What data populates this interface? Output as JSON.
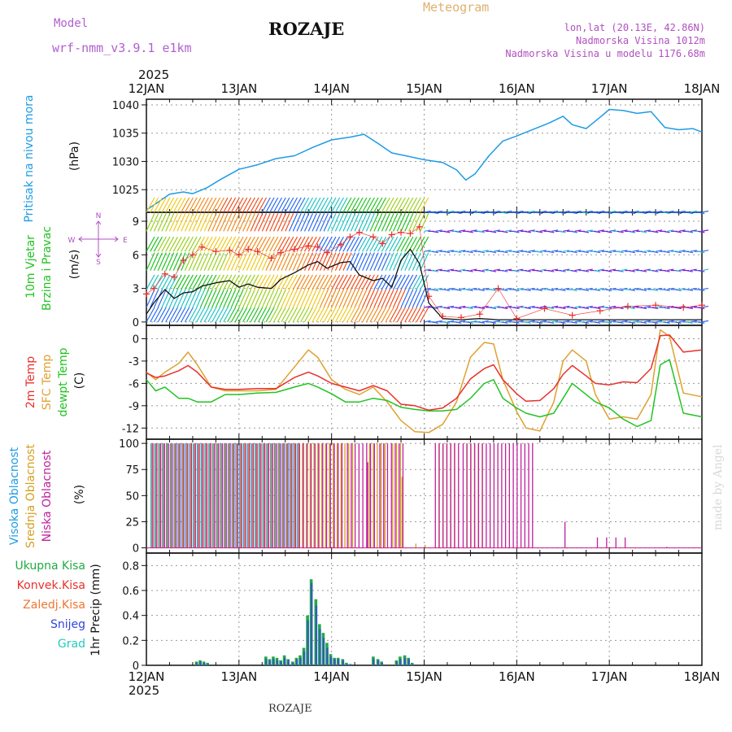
{
  "header": {
    "model_label": "Model",
    "model_name": "wrf-nmm_v3.9.1  e1km",
    "station": "ROZAJE",
    "chart_title": "Meteogram",
    "coords": "lon,lat (20.13E, 42.86N)",
    "elevation": "Nadmorska Visina 1012m",
    "model_elevation": "Nadmorska Visina u modelu 1176.68m",
    "watermark": "made by Angel",
    "footer_station": "ROZAJE"
  },
  "time_axis": {
    "year": "2025",
    "labels": [
      "12JAN",
      "13JAN",
      "14JAN",
      "15JAN",
      "16JAN",
      "17JAN",
      "18JAN"
    ]
  },
  "colors": {
    "pressure": "#1e9be6",
    "temp2m": "#e8302b",
    "sfc_temp": "#e0a030",
    "dewpt": "#22c322",
    "wind_speed": "#111111",
    "gust": "#e8302b",
    "high_cloud": "#1e9be6",
    "mid_cloud": "#d4a020",
    "low_cloud": "#c0209a",
    "precip_total": "#22aa44",
    "snow": "#3344dd",
    "grad": "#22ccbb"
  },
  "chart_data": [
    {
      "type": "line",
      "id": "pressure",
      "ylabel": [
        "Pritisak na nivou mora",
        "(hPa)"
      ],
      "ylim": [
        1021,
        1041
      ],
      "yticks": [
        "1025",
        "1030",
        "1035",
        "1040"
      ],
      "x_days": [
        0,
        0.1,
        0.25,
        0.4,
        0.5,
        0.65,
        0.8,
        1.0,
        1.2,
        1.4,
        1.6,
        1.8,
        2.0,
        2.2,
        2.35,
        2.5,
        2.65,
        2.8,
        3.0,
        3.2,
        3.35,
        3.45,
        3.55,
        3.7,
        3.85,
        4.0,
        4.2,
        4.35,
        4.5,
        4.6,
        4.75,
        4.9,
        5.0,
        5.15,
        5.3,
        5.45,
        5.6,
        5.75,
        5.9,
        6.0
      ],
      "series": [
        {
          "values": [
            1021.4,
            1022.5,
            1024.2,
            1024.6,
            1024.3,
            1025.3,
            1026.8,
            1028.6,
            1029.4,
            1030.5,
            1031.0,
            1032.5,
            1033.8,
            1034.3,
            1034.8,
            1033.2,
            1031.5,
            1031.0,
            1030.3,
            1029.8,
            1028.5,
            1026.7,
            1027.8,
            1031.0,
            1033.6,
            1034.5,
            1035.8,
            1036.8,
            1038.0,
            1036.5,
            1035.8,
            1037.8,
            1039.2,
            1039.0,
            1038.5,
            1038.8,
            1036.0,
            1035.6,
            1035.8,
            1035.2
          ]
        }
      ]
    },
    {
      "type": "line",
      "id": "wind",
      "ylabel": [
        "10m Vjetar",
        "Brzina i Pravac",
        "(m/s)"
      ],
      "ylim": [
        -0.3,
        9.8
      ],
      "yticks": [
        "0",
        "3",
        "6",
        "9"
      ],
      "compass": [
        "N",
        "W",
        "E",
        "S"
      ],
      "x_days": [
        0,
        0.08,
        0.2,
        0.3,
        0.4,
        0.5,
        0.6,
        0.75,
        0.9,
        1.0,
        1.1,
        1.2,
        1.35,
        1.45,
        1.6,
        1.75,
        1.85,
        1.95,
        2.1,
        2.2,
        2.3,
        2.45,
        2.55,
        2.65,
        2.75,
        2.85,
        2.95,
        3.05,
        3.2,
        3.4,
        3.6,
        3.8,
        4.0,
        4.3,
        4.6,
        4.9,
        5.2,
        5.5,
        5.8,
        6.0
      ],
      "series": [
        {
          "values": [
            0.7,
            1.7,
            2.9,
            2.1,
            2.6,
            2.7,
            3.2,
            3.5,
            3.7,
            3.1,
            3.4,
            3.1,
            3.0,
            3.8,
            4.4,
            5.1,
            5.4,
            4.8,
            5.3,
            5.4,
            4.2,
            3.7,
            3.9,
            3.1,
            5.5,
            6.5,
            5.2,
            1.7,
            0.3,
            0.2,
            0.3,
            0.2,
            0.2,
            0.2,
            0.2,
            0.2,
            0.2,
            0.2,
            0.2,
            0.2
          ]
        },
        {
          "values": [
            2.5,
            3.0,
            4.3,
            4.0,
            5.5,
            6.0,
            6.7,
            6.3,
            6.4,
            6.0,
            6.5,
            6.3,
            5.7,
            6.2,
            6.5,
            6.8,
            6.7,
            6.2,
            6.9,
            7.6,
            8.0,
            7.6,
            7.0,
            7.8,
            8.0,
            7.9,
            8.5,
            2.3,
            0.5,
            0.4,
            0.7,
            3.0,
            0.3,
            1.2,
            0.6,
            1.0,
            1.4,
            1.5,
            1.3,
            1.5
          ]
        }
      ]
    },
    {
      "type": "line",
      "id": "temperature",
      "ylabel": [
        "2m Temp",
        "SFC Temp",
        "dewpt Temp",
        "(C)"
      ],
      "ylim": [
        -13.5,
        1.8
      ],
      "yticks": [
        "0",
        "-3",
        "-6",
        "-9",
        "-12"
      ],
      "x_days": [
        0,
        0.1,
        0.2,
        0.35,
        0.45,
        0.55,
        0.7,
        0.85,
        1.0,
        1.2,
        1.4,
        1.6,
        1.75,
        1.85,
        2.0,
        2.15,
        2.3,
        2.45,
        2.6,
        2.75,
        2.9,
        3.05,
        3.2,
        3.35,
        3.5,
        3.65,
        3.75,
        3.85,
        4.0,
        4.1,
        4.25,
        4.4,
        4.5,
        4.6,
        4.75,
        4.85,
        5.0,
        5.15,
        5.3,
        5.45,
        5.55,
        5.65,
        5.8,
        6.0
      ],
      "series": [
        {
          "name": "2m Temp",
          "values": [
            -4.6,
            -5.2,
            -5.0,
            -4.3,
            -3.6,
            -4.5,
            -6.5,
            -6.8,
            -6.8,
            -6.7,
            -6.7,
            -5.2,
            -4.5,
            -5.0,
            -6.0,
            -6.5,
            -7.0,
            -6.3,
            -7.0,
            -8.8,
            -9.0,
            -9.6,
            -9.3,
            -8.0,
            -5.4,
            -4.0,
            -3.5,
            -5.5,
            -7.4,
            -8.4,
            -8.3,
            -6.7,
            -4.8,
            -3.6,
            -5.0,
            -6.0,
            -6.2,
            -5.8,
            -5.9,
            -4.0,
            0.4,
            0.5,
            -1.8,
            -1.5
          ]
        },
        {
          "name": "SFC Temp",
          "values": [
            -4.5,
            -5.5,
            -4.5,
            -3.3,
            -1.8,
            -3.5,
            -6.5,
            -7.0,
            -7.0,
            -7.0,
            -6.8,
            -3.8,
            -1.5,
            -2.5,
            -5.5,
            -6.8,
            -7.5,
            -6.5,
            -8.5,
            -11.0,
            -12.5,
            -12.6,
            -11.5,
            -8.5,
            -2.5,
            -0.5,
            -0.7,
            -5.5,
            -9.8,
            -12.0,
            -12.4,
            -8.5,
            -3.0,
            -1.5,
            -3.0,
            -7.5,
            -10.8,
            -10.5,
            -10.8,
            -7.5,
            1.2,
            0.3,
            -7.3,
            -7.8
          ]
        },
        {
          "name": "dewpt Temp",
          "values": [
            -5.5,
            -7.0,
            -6.5,
            -8.0,
            -8.0,
            -8.5,
            -8.5,
            -7.5,
            -7.5,
            -7.3,
            -7.2,
            -6.5,
            -6.0,
            -6.5,
            -7.4,
            -8.5,
            -8.5,
            -8.0,
            -8.3,
            -9.2,
            -9.5,
            -9.7,
            -9.7,
            -9.5,
            -8.0,
            -6.0,
            -5.5,
            -8.0,
            -9.3,
            -10.0,
            -10.5,
            -10.0,
            -8.0,
            -6.0,
            -7.5,
            -8.5,
            -9.3,
            -10.8,
            -11.8,
            -11.0,
            -3.5,
            -2.8,
            -10.0,
            -10.5
          ]
        }
      ]
    },
    {
      "type": "bar",
      "id": "cloud",
      "ylabel": [
        "Visoka Oblacnost",
        "Srednja Oblacnost",
        "Niska Oblacnost",
        "(%)"
      ],
      "ylim": [
        -5,
        104
      ],
      "yticks": [
        "0",
        "25",
        "50",
        "75",
        "100"
      ],
      "series": [
        {
          "name": "Visoka Oblacnost",
          "segments": [
            [
              0.05,
              1.65,
              100
            ]
          ]
        },
        {
          "name": "Srednja Oblacnost",
          "segments": [
            [
              0.05,
              2.25,
              100
            ],
            [
              2.4,
              2.6,
              100
            ],
            [
              2.65,
              2.75,
              100
            ],
            [
              3.15,
              3.35,
              100
            ],
            [
              3.45,
              3.65,
              100
            ]
          ],
          "spikes": [
            [
              2.75,
              68
            ],
            [
              2.9,
              4
            ],
            [
              3.0,
              3
            ]
          ]
        },
        {
          "name": "Niska Oblacnost",
          "segments": [
            [
              0.05,
              2.1,
              100
            ],
            [
              2.15,
              2.45,
              100
            ],
            [
              2.5,
              2.75,
              100
            ],
            [
              3.1,
              3.35,
              100
            ],
            [
              3.4,
              4.15,
              100
            ]
          ],
          "spikes": [
            [
              2.37,
              82
            ],
            [
              4.5,
              25
            ],
            [
              4.85,
              10
            ],
            [
              4.95,
              10
            ],
            [
              5.05,
              10
            ],
            [
              5.15,
              10
            ],
            [
              5.6,
              1
            ]
          ]
        }
      ]
    },
    {
      "type": "bar",
      "id": "precip",
      "ylabel": [
        "Ukupna Kisa",
        "Konvek.Kisa",
        "Zaledj.Kisa",
        "Snijeg",
        "Grad",
        "1hr Precip (mm)"
      ],
      "ylim": [
        0,
        0.9
      ],
      "yticks": [
        "0",
        "0.2",
        "0.4",
        "0.6",
        "0.8"
      ],
      "x_days": [
        0.54,
        0.58,
        0.62,
        0.66,
        1.29,
        1.33,
        1.37,
        1.41,
        1.45,
        1.49,
        1.53,
        1.58,
        1.62,
        1.66,
        1.7,
        1.74,
        1.78,
        1.83,
        1.87,
        1.91,
        1.95,
        1.99,
        2.03,
        2.07,
        2.12,
        2.16,
        2.2,
        2.45,
        2.5,
        2.54,
        2.7,
        2.74,
        2.79,
        2.83,
        2.87
      ],
      "series": [
        {
          "name": "Ukupna Kisa",
          "values": [
            0.03,
            0.04,
            0.03,
            0.02,
            0.07,
            0.05,
            0.07,
            0.06,
            0.04,
            0.08,
            0.05,
            0.03,
            0.06,
            0.08,
            0.14,
            0.4,
            0.69,
            0.53,
            0.33,
            0.26,
            0.18,
            0.09,
            0.06,
            0.06,
            0.05,
            0.02,
            0.01,
            0.07,
            0.05,
            0.03,
            0.04,
            0.07,
            0.08,
            0.06,
            0.02
          ]
        },
        {
          "name": "Snijeg",
          "values": [
            0.02,
            0.03,
            0.02,
            0.01,
            0.05,
            0.04,
            0.05,
            0.04,
            0.03,
            0.06,
            0.04,
            0.02,
            0.05,
            0.06,
            0.11,
            0.36,
            0.66,
            0.48,
            0.29,
            0.22,
            0.14,
            0.07,
            0.05,
            0.05,
            0.04,
            0.01,
            0.01,
            0.05,
            0.04,
            0.02,
            0.03,
            0.05,
            0.06,
            0.05,
            0.01
          ]
        }
      ]
    }
  ]
}
